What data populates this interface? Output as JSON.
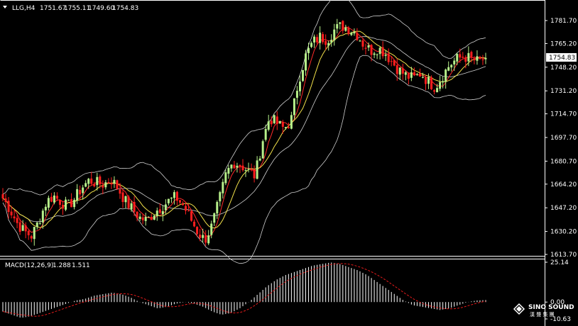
{
  "header": {
    "symbol": "LLG,H4",
    "open": "1751.67",
    "high": "1755.11",
    "low": "1749.60",
    "close": "1754.83"
  },
  "macd": {
    "label": "MACD(12,26,9)",
    "main_value": "1.288",
    "signal_value": "1.511",
    "ticks": [
      "25.14",
      "0.00",
      "-10.63"
    ]
  },
  "price_axis": {
    "ticks": [
      "1781.70",
      "1765.20",
      "1748.20",
      "1731.20",
      "1714.70",
      "1697.70",
      "1680.70",
      "1664.20",
      "1647.20",
      "1630.20",
      "1613.70"
    ],
    "current_price": "1754.83"
  },
  "watermark": {
    "name": "SINO SOUND",
    "sub": "漢 聲 集 團"
  },
  "colors": {
    "background": "#000000",
    "bull_candle": "#b7f08a",
    "bear_candle": "#ff1e1e",
    "moving_average_fast": "#ff2a2a",
    "moving_average_slow": "#f2e14a",
    "bollinger": "#cfcfcf",
    "macd_signal": "#e31b1b",
    "macd_hist": "#ffffff",
    "axis": "#ffffff"
  },
  "chart_data": {
    "type": "candlestick",
    "timeframe": "H4",
    "ylim": [
      1613.7,
      1790
    ],
    "close_path": [
      1654,
      1646,
      1636,
      1630,
      1627,
      1638,
      1651,
      1656,
      1652,
      1648,
      1654,
      1662,
      1667,
      1665,
      1664,
      1668,
      1661,
      1652,
      1646,
      1640,
      1638,
      1644,
      1648,
      1652,
      1655,
      1649,
      1640,
      1630,
      1624,
      1634,
      1652,
      1672,
      1680,
      1678,
      1674,
      1670,
      1695,
      1712,
      1708,
      1704,
      1710,
      1738,
      1756,
      1766,
      1770,
      1768,
      1775,
      1778,
      1776,
      1773,
      1765,
      1760,
      1762,
      1759,
      1752,
      1746,
      1742,
      1740,
      1744,
      1738,
      1734,
      1742,
      1750,
      1754,
      1756,
      1754,
      1752,
      1754.83
    ],
    "macd_range": [
      -10.63,
      25.14
    ],
    "macd_path": [
      -6,
      -8,
      -10,
      -9,
      -7,
      -5,
      -3,
      -1,
      1,
      2,
      4,
      5,
      6,
      5,
      3,
      0,
      -2,
      -4,
      -3,
      -1,
      0,
      -1,
      -3,
      -6,
      -8,
      -7,
      -4,
      0,
      5,
      10,
      14,
      17,
      19,
      21,
      23,
      24,
      25,
      24,
      22,
      20,
      17,
      13,
      9,
      5,
      1,
      -2,
      -3,
      -4,
      -5,
      -4,
      -2,
      0,
      1,
      1.3
    ]
  }
}
